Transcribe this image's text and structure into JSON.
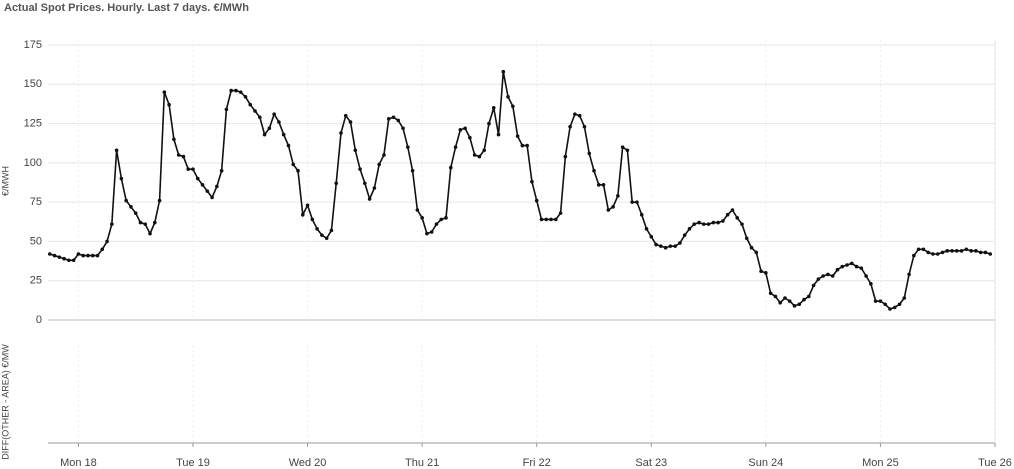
{
  "chart_data": {
    "type": "line",
    "title": "Actual Spot Prices. Hourly. Last 7 days. €/MWh",
    "y_label": "€/MWH",
    "lower_panel_label": "DIFF(OTHER - AREA) €/MW",
    "color": "#111111",
    "grid": true,
    "xlim": [
      -7,
      192
    ],
    "xticks": [
      {
        "value": 0,
        "label": "Mon 18"
      },
      {
        "value": 24,
        "label": "Tue 19"
      },
      {
        "value": 48,
        "label": "Wed 20"
      },
      {
        "value": 72,
        "label": "Thu 21"
      },
      {
        "value": 96,
        "label": "Fri 22"
      },
      {
        "value": 120,
        "label": "Sat 23"
      },
      {
        "value": 144,
        "label": "Sun 24"
      },
      {
        "value": 168,
        "label": "Mon 25"
      },
      {
        "value": 192,
        "label": "Tue 26"
      }
    ],
    "ylim": [
      0,
      175
    ],
    "yticks": [
      0,
      25,
      50,
      75,
      100,
      125,
      150,
      175
    ],
    "x": [
      -6,
      -5,
      -4,
      -3,
      -2,
      -1,
      0,
      1,
      2,
      3,
      4,
      5,
      6,
      7,
      8,
      9,
      10,
      11,
      12,
      13,
      14,
      15,
      16,
      17,
      18,
      19,
      20,
      21,
      22,
      23,
      24,
      25,
      26,
      27,
      28,
      29,
      30,
      31,
      32,
      33,
      34,
      35,
      36,
      37,
      38,
      39,
      40,
      41,
      42,
      43,
      44,
      45,
      46,
      47,
      48,
      49,
      50,
      51,
      52,
      53,
      54,
      55,
      56,
      57,
      58,
      59,
      60,
      61,
      62,
      63,
      64,
      65,
      66,
      67,
      68,
      69,
      70,
      71,
      72,
      73,
      74,
      75,
      76,
      77,
      78,
      79,
      80,
      81,
      82,
      83,
      84,
      85,
      86,
      87,
      88,
      89,
      90,
      91,
      92,
      93,
      94,
      95,
      96,
      97,
      98,
      99,
      100,
      101,
      102,
      103,
      104,
      105,
      106,
      107,
      108,
      109,
      110,
      111,
      112,
      113,
      114,
      115,
      116,
      117,
      118,
      119,
      120,
      121,
      122,
      123,
      124,
      125,
      126,
      127,
      128,
      129,
      130,
      131,
      132,
      133,
      134,
      135,
      136,
      137,
      138,
      139,
      140,
      141,
      142,
      143,
      144,
      145,
      146,
      147,
      148,
      149,
      150,
      151,
      152,
      153,
      154,
      155,
      156,
      157,
      158,
      159,
      160,
      161,
      162,
      163,
      164,
      165,
      166,
      167,
      168,
      169,
      170,
      171,
      172,
      173,
      174,
      175,
      176,
      177,
      178,
      179,
      180,
      181,
      182,
      183,
      184,
      185,
      186,
      187,
      188,
      189,
      190,
      191
    ],
    "values": [
      42,
      41,
      40,
      39,
      38,
      38,
      42,
      41,
      41,
      41,
      41,
      45,
      50,
      61,
      108,
      90,
      76,
      72,
      68,
      62,
      61,
      55,
      62,
      76,
      145,
      137,
      115,
      105,
      104,
      96,
      96,
      90,
      86,
      82,
      78,
      85,
      95,
      134,
      146,
      146,
      145,
      142,
      137,
      133,
      129,
      118,
      122,
      131,
      126,
      118,
      111,
      99,
      95,
      67,
      73,
      64,
      58,
      54,
      52,
      57,
      87,
      119,
      130,
      126,
      108,
      96,
      87,
      77,
      84,
      99,
      105,
      128,
      129,
      127,
      122,
      110,
      95,
      70,
      65,
      55,
      56,
      61,
      64,
      65,
      97,
      110,
      121,
      122,
      116,
      105,
      104,
      108,
      125,
      135,
      118,
      158,
      142,
      136,
      117,
      111,
      111,
      88,
      76,
      64,
      64,
      64,
      64,
      68,
      104,
      123,
      131,
      130,
      123,
      106,
      95,
      86,
      86,
      70,
      72,
      79,
      110,
      108,
      75,
      75,
      67,
      58,
      53,
      48,
      47,
      46,
      47,
      47,
      49,
      54,
      58,
      61,
      62,
      61,
      61,
      62,
      62,
      63,
      67,
      70,
      65,
      61,
      52,
      46,
      43,
      31,
      30,
      17,
      15,
      11,
      14,
      12,
      9,
      10,
      13,
      15,
      22,
      26,
      28,
      29,
      28,
      32,
      34,
      35,
      36,
      34,
      33,
      28,
      23,
      12,
      12,
      10,
      7,
      8,
      10,
      14,
      29,
      41,
      45,
      45,
      43,
      42,
      42,
      43,
      44,
      44,
      44,
      44,
      45,
      44,
      44,
      43,
      43,
      42
    ]
  }
}
